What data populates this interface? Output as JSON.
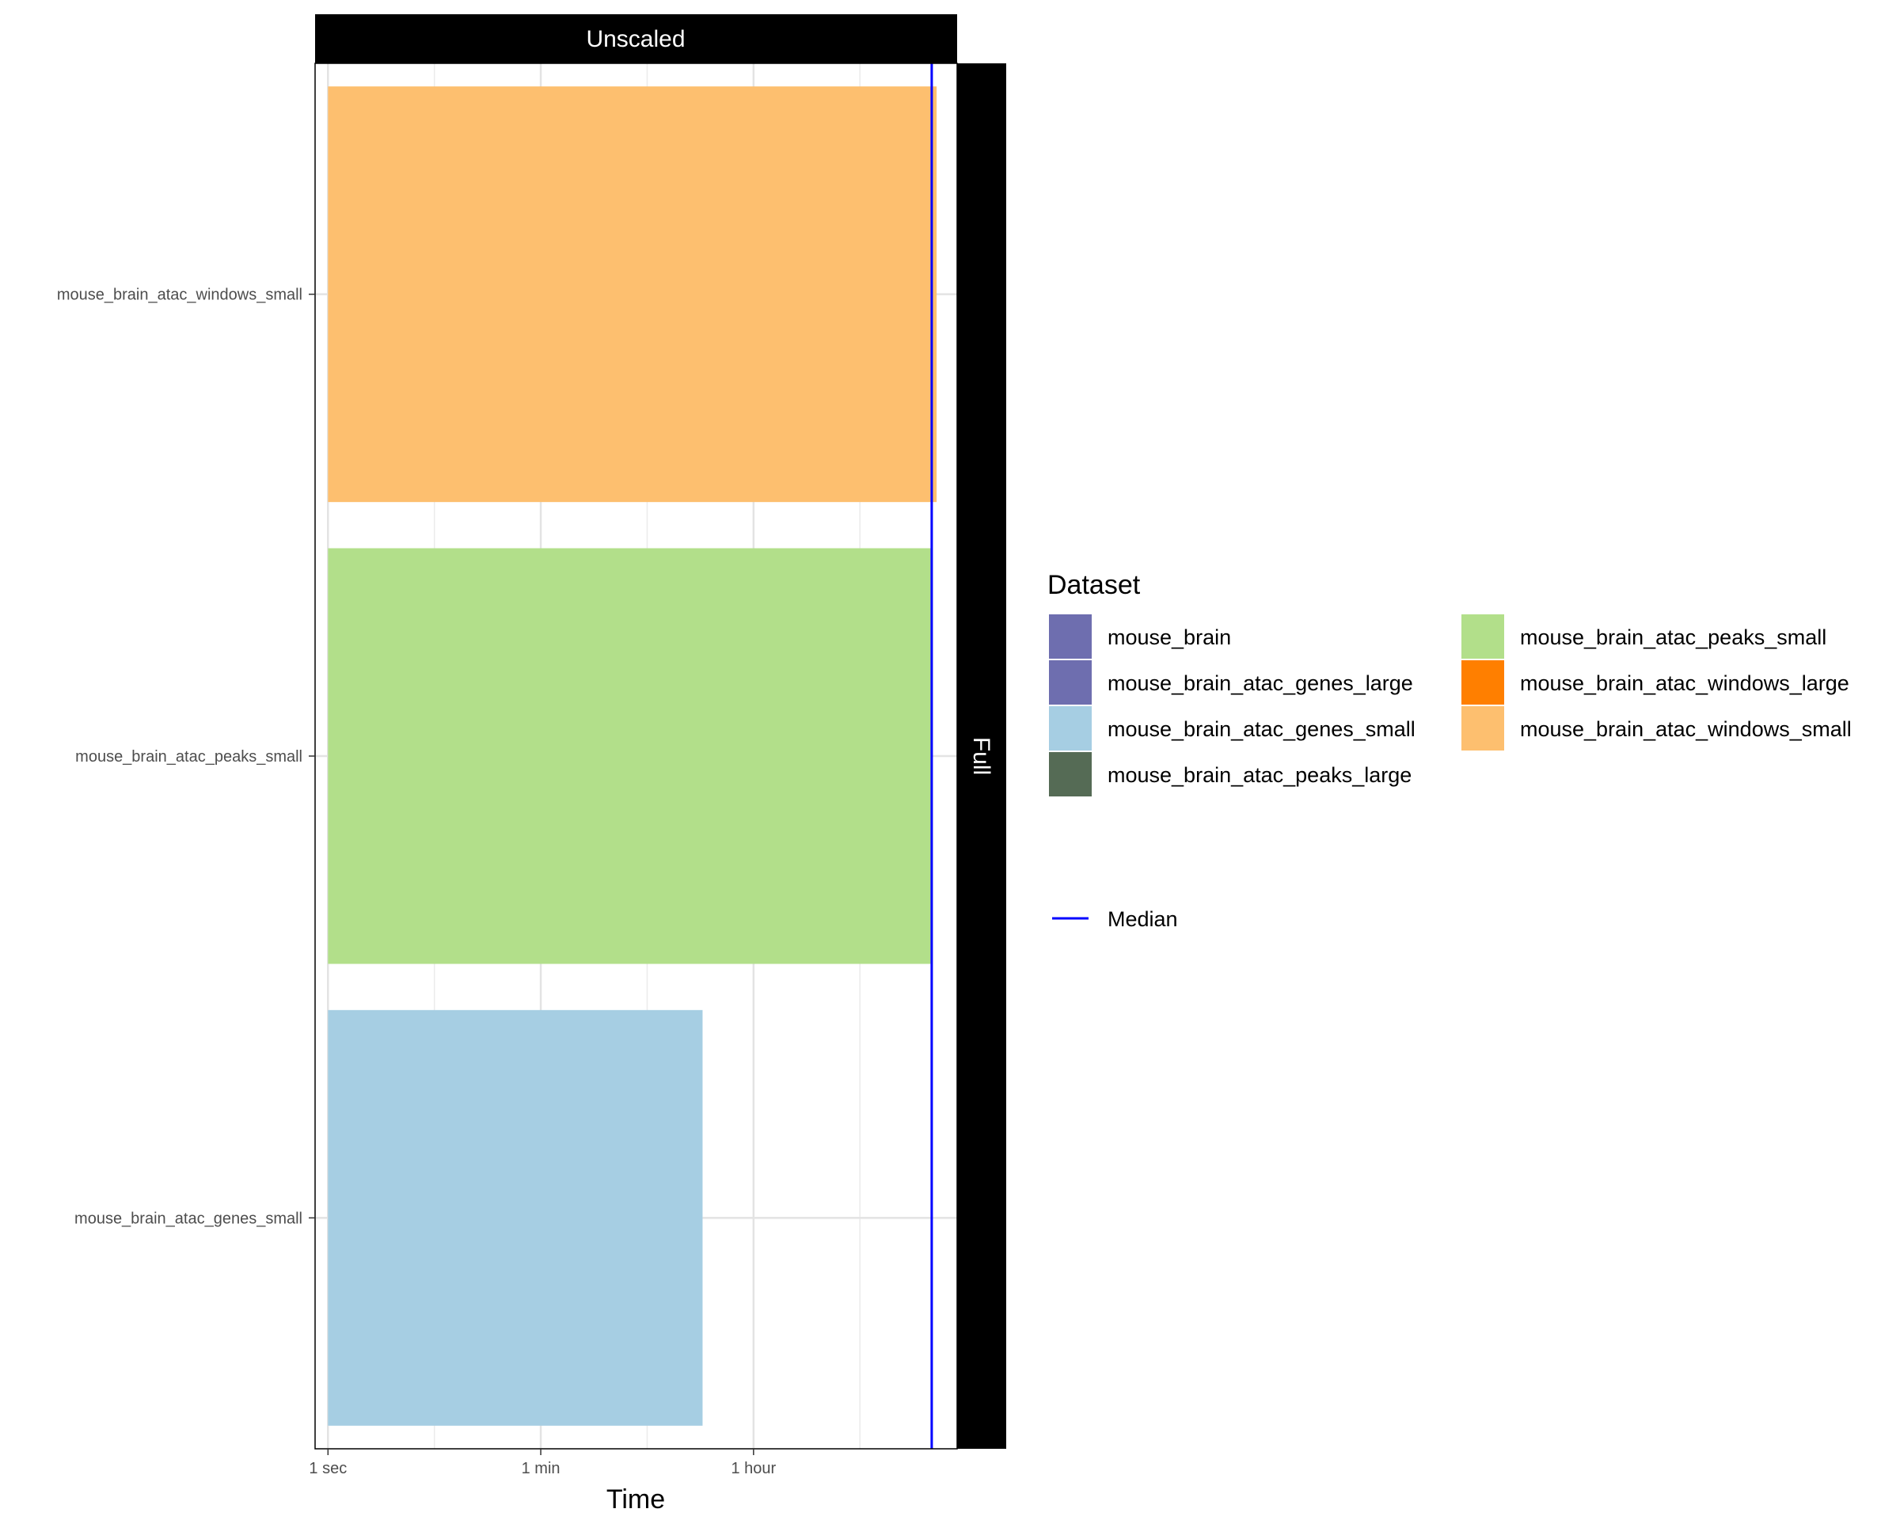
{
  "chart_data": {
    "type": "bar",
    "orientation": "horizontal",
    "facet_column_label": "Unscaled",
    "facet_row_label": "Full",
    "x_scale": "log",
    "xlabel": "Time",
    "ylabel": "",
    "x_unit": "seconds",
    "xlim": [
      0.78,
      181000
    ],
    "x_ticks": [
      {
        "value": 1,
        "label": "1 sec"
      },
      {
        "value": 60,
        "label": "1 min"
      },
      {
        "value": 3600,
        "label": "1 hour"
      }
    ],
    "categories": [
      "mouse_brain_atac_windows_small",
      "mouse_brain_atac_peaks_small",
      "mouse_brain_atac_genes_small"
    ],
    "values": [
      122000,
      111000,
      1350
    ],
    "bar_colors": [
      "#FDBF6F",
      "#B2DF8A",
      "#A6CEE3"
    ],
    "median": {
      "label": "Median",
      "value": 111000,
      "color": "#0000FF"
    },
    "grid": true,
    "legend": {
      "title": "Dataset",
      "placement": "right",
      "columns": 2,
      "items": [
        {
          "label": "mouse_brain",
          "color": "#6E6EAF"
        },
        {
          "label": "mouse_brain_atac_genes_large",
          "color": "#6E6EAF"
        },
        {
          "label": "mouse_brain_atac_genes_small",
          "color": "#A6CEE3"
        },
        {
          "label": "mouse_brain_atac_peaks_large",
          "color": "#556B55"
        },
        {
          "label": "mouse_brain_atac_peaks_small",
          "color": "#B2DF8A"
        },
        {
          "label": "mouse_brain_atac_windows_large",
          "color": "#FF7F00"
        },
        {
          "label": "mouse_brain_atac_windows_small",
          "color": "#FDBF6F"
        }
      ]
    }
  }
}
